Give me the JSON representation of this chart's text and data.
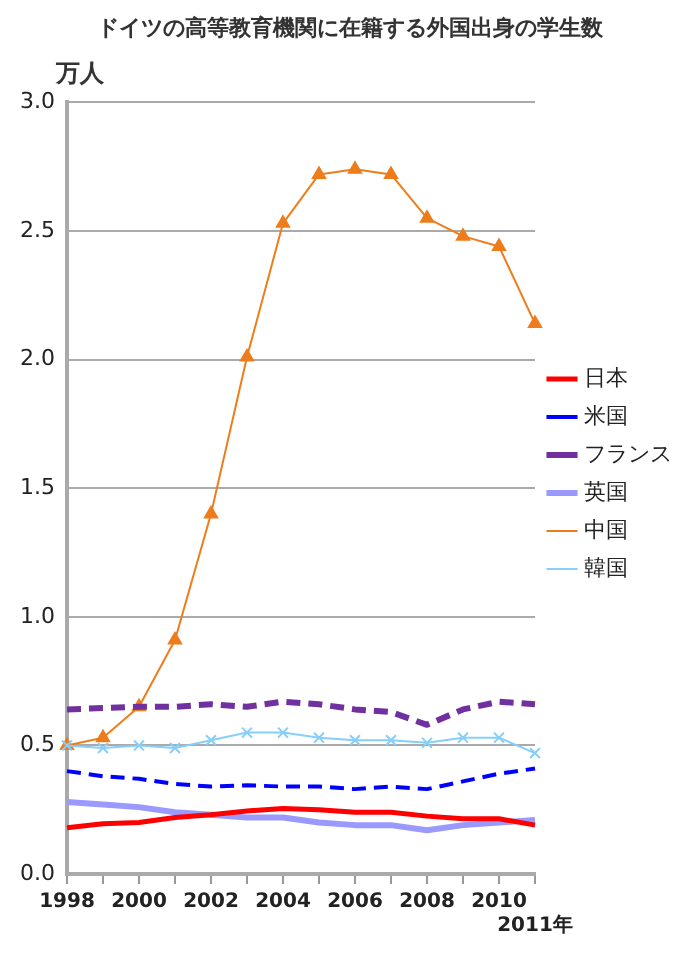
{
  "chart_data": {
    "type": "line",
    "title": "ドイツの高等教育機関に在籍する外国出身の学生数",
    "ylabel": "万人",
    "categories": [
      "1998",
      null,
      "2000",
      null,
      "2002",
      null,
      "2004",
      null,
      "2006",
      null,
      "2008",
      null,
      "2010",
      "2011年"
    ],
    "ylim": [
      0,
      3
    ],
    "yticks": [
      {
        "value": 0,
        "label": "0.0"
      },
      0.5,
      {
        "value": 1,
        "label": "1.0"
      },
      1.5,
      {
        "value": 2,
        "label": "2.0"
      },
      2.5,
      {
        "value": 3,
        "label": "3.0"
      }
    ],
    "grid": "y",
    "legend": "right",
    "marker": "none",
    "series": [
      {
        "name": "日本",
        "color": "#ff0000",
        "line_style": "solid",
        "values": [
          0.18,
          0.195,
          0.2,
          0.22,
          0.23,
          0.245,
          0.255,
          0.25,
          0.24,
          0.24,
          0.225,
          0.215,
          0.215,
          0.19
        ]
      },
      {
        "name": "米国",
        "color": "#0000ff",
        "line_style": "dashed",
        "values": [
          0.4,
          0.38,
          0.37,
          0.35,
          0.34,
          0.345,
          0.34,
          0.34,
          0.33,
          0.34,
          0.33,
          0.36,
          0.39,
          0.41
        ]
      },
      {
        "name": "フランス",
        "color": "#7030a0",
        "line_style": "dashed",
        "values": [
          0.64,
          0.645,
          0.65,
          0.65,
          0.66,
          0.65,
          0.67,
          0.66,
          0.64,
          0.63,
          0.58,
          0.64,
          0.67,
          0.66
        ]
      },
      {
        "name": "英国",
        "color": "#9999ff",
        "line_style": "solid",
        "values": [
          0.28,
          0.27,
          0.26,
          0.24,
          0.23,
          0.22,
          0.22,
          0.2,
          0.19,
          0.19,
          0.17,
          0.19,
          0.2,
          0.21
        ]
      },
      {
        "name": "中国",
        "color": "#ee7c1b",
        "line_style": "solid",
        "marker": "triangle",
        "values": [
          0.5,
          0.53,
          0.65,
          0.91,
          1.4,
          2.01,
          2.53,
          2.72,
          2.74,
          2.72,
          2.55,
          2.48,
          2.44,
          2.14
        ]
      },
      {
        "name": "韓国",
        "color": "#87cefa",
        "line_style": "solid",
        "marker": "cross",
        "values": [
          0.5,
          0.49,
          0.5,
          0.49,
          0.52,
          0.55,
          0.55,
          0.53,
          0.52,
          0.52,
          0.51,
          0.53,
          0.53,
          0.47
        ]
      }
    ]
  }
}
